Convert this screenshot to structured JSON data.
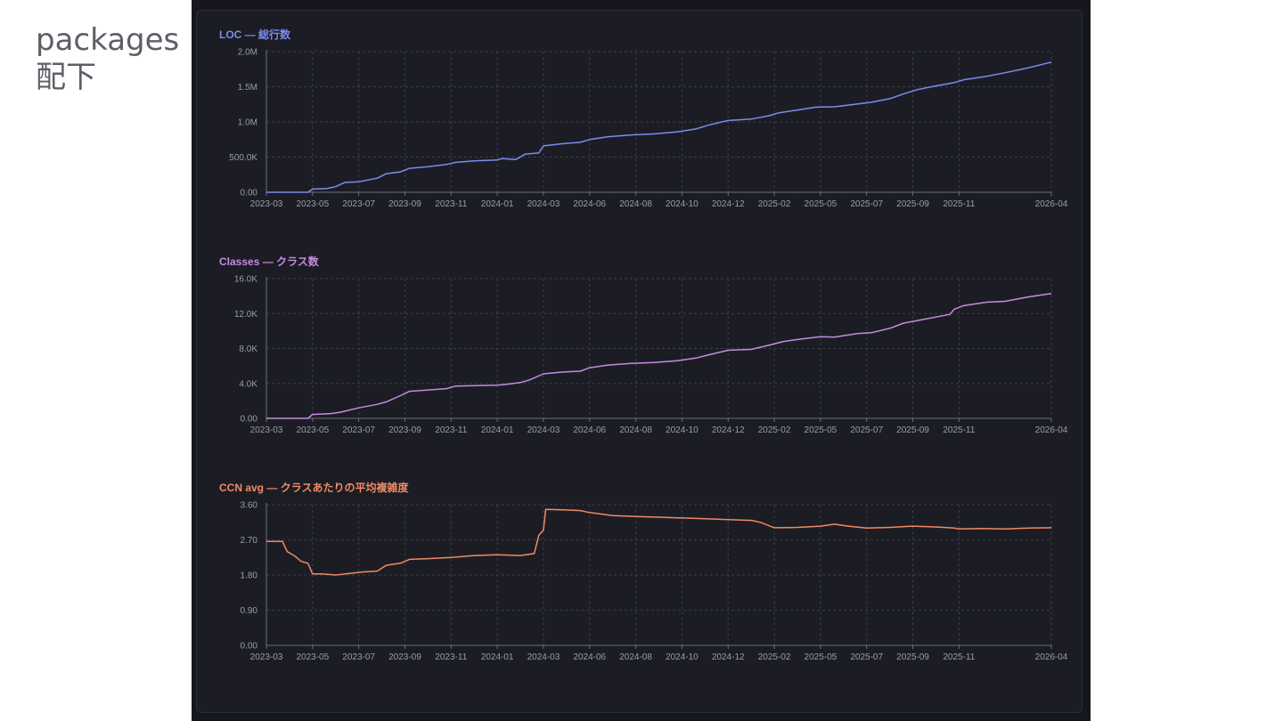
{
  "slide": {
    "title_line1": "packages",
    "title_line2": "配下"
  },
  "colors": {
    "loc": "#7b8cf0",
    "classes": "#c58be0",
    "ccn": "#ef8a66"
  },
  "chart_data": [
    {
      "type": "line",
      "title": "LOC — 総行数",
      "color": "#7b8cf0",
      "x_ticks": [
        "2023-03",
        "2023-05",
        "2023-07",
        "2023-09",
        "2023-11",
        "2024-01",
        "2024-03",
        "2024-06",
        "2024-08",
        "2024-10",
        "2024-12",
        "2025-02",
        "2025-05",
        "2025-07",
        "2025-09",
        "2025-11",
        "2026-04"
      ],
      "x_tick_pos": [
        0,
        1,
        2,
        3,
        4,
        5,
        6,
        7,
        8,
        9,
        10,
        11,
        12,
        13,
        14,
        15,
        17
      ],
      "y_ticks": [
        "0.00",
        "500.0K",
        "1.0M",
        "1.5M",
        "2.0M"
      ],
      "y_tick_values": [
        0,
        500000,
        1000000,
        1500000,
        2000000
      ],
      "ylim": [
        0,
        2000000
      ],
      "x": [
        0,
        0.9,
        1.0,
        1.3,
        1.5,
        1.7,
        2.0,
        2.4,
        2.6,
        2.9,
        3.1,
        3.5,
        3.9,
        4.1,
        4.5,
        5.0,
        5.1,
        5.4,
        5.6,
        5.9,
        6.0,
        6.4,
        6.8,
        7.0,
        7.4,
        7.9,
        8.4,
        8.9,
        9.3,
        9.6,
        10.0,
        10.5,
        10.9,
        11.1,
        11.5,
        11.9,
        12.3,
        12.8,
        13.1,
        13.5,
        13.8,
        14.1,
        14.4,
        14.9,
        15.1,
        15.6,
        16.0,
        16.5,
        17.0
      ],
      "values": [
        0,
        0,
        45000,
        52000,
        80000,
        140000,
        150000,
        200000,
        265000,
        290000,
        340000,
        365000,
        395000,
        425000,
        445000,
        460000,
        480000,
        465000,
        540000,
        560000,
        660000,
        690000,
        710000,
        750000,
        790000,
        815000,
        830000,
        860000,
        900000,
        960000,
        1020000,
        1040000,
        1090000,
        1130000,
        1170000,
        1210000,
        1215000,
        1255000,
        1280000,
        1330000,
        1400000,
        1460000,
        1500000,
        1560000,
        1600000,
        1650000,
        1700000,
        1770000,
        1850000
      ]
    },
    {
      "type": "line",
      "title": "Classes — クラス数",
      "color": "#c58be0",
      "x_ticks": [
        "2023-03",
        "2023-05",
        "2023-07",
        "2023-09",
        "2023-11",
        "2024-01",
        "2024-03",
        "2024-06",
        "2024-08",
        "2024-10",
        "2024-12",
        "2025-02",
        "2025-05",
        "2025-07",
        "2025-09",
        "2025-11",
        "2026-04"
      ],
      "x_tick_pos": [
        0,
        1,
        2,
        3,
        4,
        5,
        6,
        7,
        8,
        9,
        10,
        11,
        12,
        13,
        14,
        15,
        17
      ],
      "y_ticks": [
        "0.00",
        "4.0K",
        "8.0K",
        "12.0K",
        "16.0K"
      ],
      "y_tick_values": [
        0,
        4000,
        8000,
        12000,
        16000
      ],
      "ylim": [
        0,
        16000
      ],
      "x": [
        0,
        0.9,
        1.0,
        1.4,
        1.6,
        2.0,
        2.4,
        2.6,
        2.9,
        3.1,
        3.5,
        3.9,
        4.1,
        4.5,
        5.0,
        5.2,
        5.5,
        5.7,
        6.0,
        6.4,
        6.8,
        7.0,
        7.4,
        7.9,
        8.4,
        8.9,
        9.3,
        9.6,
        10.0,
        10.5,
        10.9,
        11.2,
        11.6,
        12.0,
        12.3,
        12.8,
        13.1,
        13.5,
        13.8,
        14.1,
        14.5,
        14.8,
        14.9,
        15.1,
        15.6,
        16.0,
        16.5,
        17.0
      ],
      "values": [
        0,
        0,
        450,
        550,
        700,
        1200,
        1600,
        1900,
        2600,
        3100,
        3250,
        3400,
        3700,
        3750,
        3800,
        3900,
        4100,
        4400,
        5100,
        5300,
        5400,
        5800,
        6100,
        6300,
        6400,
        6600,
        6900,
        7300,
        7800,
        7900,
        8400,
        8800,
        9100,
        9350,
        9300,
        9700,
        9800,
        10300,
        10900,
        11200,
        11600,
        11900,
        12500,
        12900,
        13300,
        13400,
        13900,
        14300
      ]
    },
    {
      "type": "line",
      "title": "CCN avg — クラスあたりの平均複雑度",
      "color": "#ef8a66",
      "x_ticks": [
        "2023-03",
        "2023-05",
        "2023-07",
        "2023-09",
        "2023-11",
        "2024-01",
        "2024-03",
        "2024-06",
        "2024-08",
        "2024-10",
        "2024-12",
        "2025-02",
        "2025-05",
        "2025-07",
        "2025-09",
        "2025-11",
        "2026-04"
      ],
      "x_tick_pos": [
        0,
        1,
        2,
        3,
        4,
        5,
        6,
        7,
        8,
        9,
        10,
        11,
        12,
        13,
        14,
        15,
        17
      ],
      "y_ticks": [
        "0.00",
        "0.90",
        "1.80",
        "2.70",
        "3.60"
      ],
      "y_tick_values": [
        0,
        0.9,
        1.8,
        2.7,
        3.6
      ],
      "ylim": [
        0,
        3.6
      ],
      "x": [
        0,
        0.35,
        0.45,
        0.6,
        0.75,
        0.9,
        1.0,
        1.2,
        1.5,
        1.8,
        2.1,
        2.4,
        2.6,
        2.9,
        3.1,
        3.5,
        4.0,
        4.5,
        5.0,
        5.5,
        5.8,
        5.9,
        6.0,
        6.05,
        6.4,
        6.8,
        7.0,
        7.5,
        8.0,
        8.5,
        9.0,
        9.5,
        10.0,
        10.5,
        10.7,
        11.0,
        11.5,
        12.0,
        12.3,
        12.6,
        13.0,
        13.5,
        14.0,
        14.5,
        14.9,
        15.0,
        15.5,
        16.0,
        16.5,
        17.0
      ],
      "values": [
        2.66,
        2.66,
        2.4,
        2.3,
        2.15,
        2.1,
        1.83,
        1.83,
        1.8,
        1.84,
        1.88,
        1.9,
        2.05,
        2.1,
        2.2,
        2.22,
        2.25,
        2.3,
        2.32,
        2.3,
        2.35,
        2.82,
        2.95,
        3.48,
        3.47,
        3.45,
        3.4,
        3.32,
        3.3,
        3.28,
        3.26,
        3.24,
        3.22,
        3.2,
        3.15,
        3.01,
        3.02,
        3.05,
        3.1,
        3.05,
        3.0,
        3.02,
        3.05,
        3.03,
        3.0,
        2.98,
        2.99,
        2.98,
        3.0,
        3.01
      ]
    }
  ]
}
